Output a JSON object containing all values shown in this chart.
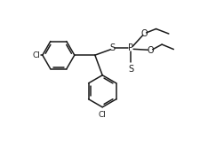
{
  "bg_color": "#ffffff",
  "line_color": "#1a1a1a",
  "lw": 1.1,
  "fs": 6.5,
  "fig_w": 2.26,
  "fig_h": 1.77,
  "dpi": 100,
  "xlim": [
    0,
    10
  ],
  "ylim": [
    0,
    8
  ]
}
